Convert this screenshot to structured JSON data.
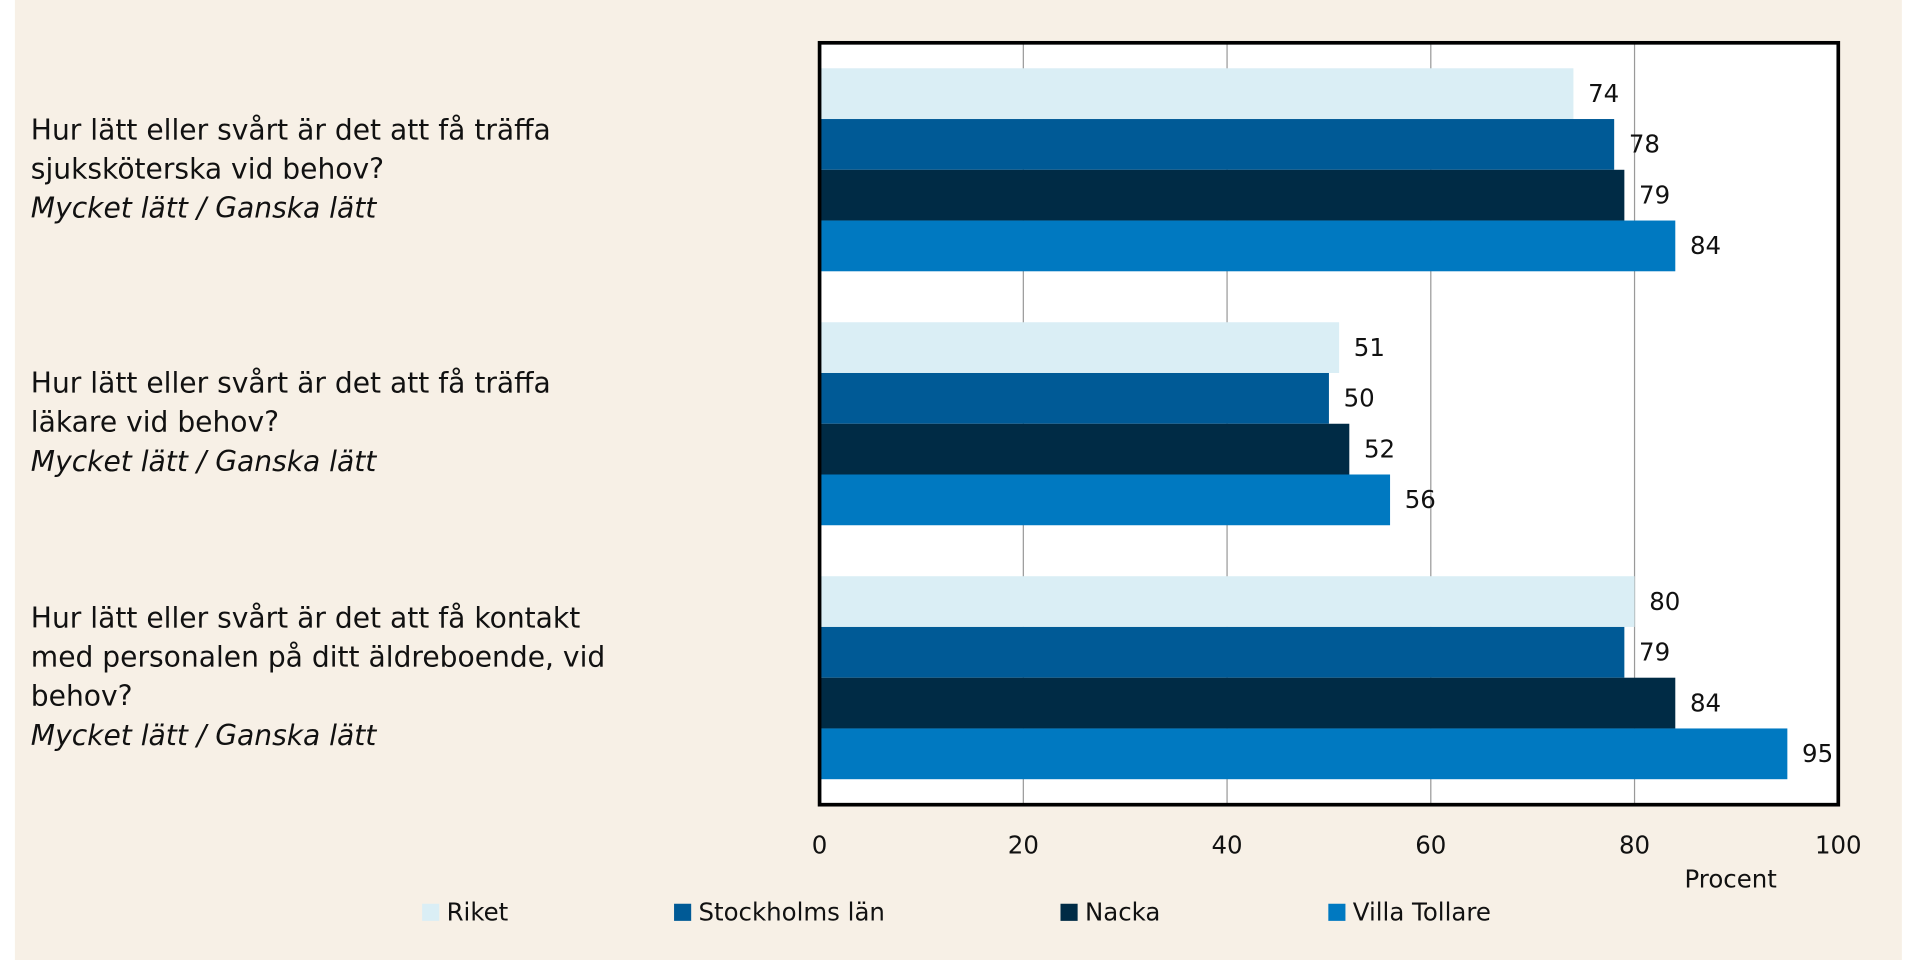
{
  "chart_data": {
    "type": "bar",
    "orientation": "horizontal",
    "categories": [
      "Hur lätt eller svårt är det att få träffa sjuksköterska vid behov?",
      "Hur lätt eller svårt är det att få träffa läkare vid behov?",
      "Hur lätt eller svårt är det att få kontakt med personalen på ditt äldreboende, vid behov?"
    ],
    "category_notes": [
      "Mycket lätt / Ganska lätt",
      "Mycket lätt / Ganska lätt",
      "Mycket lätt / Ganska lätt"
    ],
    "series": [
      {
        "name": "Riket",
        "color": "#daeef5",
        "values": [
          74,
          51,
          80
        ]
      },
      {
        "name": "Stockholms län",
        "color": "#005a96",
        "values": [
          78,
          50,
          79
        ]
      },
      {
        "name": "Nacka",
        "color": "#002b45",
        "values": [
          79,
          52,
          84
        ]
      },
      {
        "name": "Villa Tollare",
        "color": "#0079c1",
        "values": [
          84,
          56,
          95
        ]
      }
    ],
    "x_label": "Procent",
    "xlim": [
      0,
      100
    ],
    "xticks": [
      0,
      20,
      40,
      60,
      80,
      100
    ],
    "grid": true,
    "legend": "bottom"
  }
}
